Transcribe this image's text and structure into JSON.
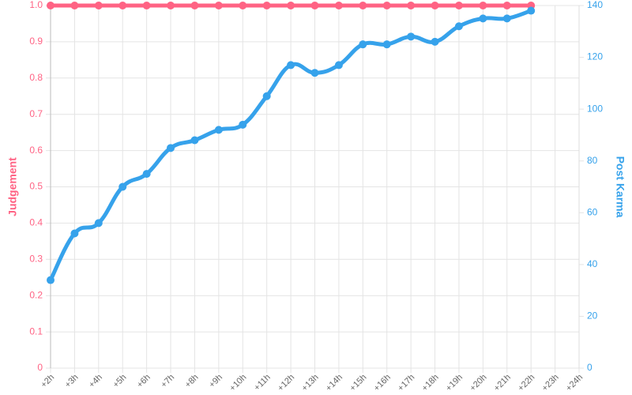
{
  "chart_data": {
    "type": "line",
    "categories": [
      "+2h",
      "+3h",
      "+4h",
      "+5h",
      "+6h",
      "+7h",
      "+8h",
      "+9h",
      "+10h",
      "+11h",
      "+12h",
      "+13h",
      "+14h",
      "+15h",
      "+16h",
      "+17h",
      "+18h",
      "+19h",
      "+20h",
      "+21h",
      "+22h",
      "+23h",
      "+24h"
    ],
    "series": [
      {
        "name": "Judgement",
        "color": "#ff6384",
        "axis": "y",
        "smooth": false,
        "values": [
          1,
          1,
          1,
          1,
          1,
          1,
          1,
          1,
          1,
          1,
          1,
          1,
          1,
          1,
          1,
          1,
          1,
          1,
          1,
          1,
          1,
          null,
          null
        ]
      },
      {
        "name": "Post Karma",
        "color": "#36a2eb",
        "axis": "y2",
        "smooth": true,
        "values": [
          34,
          52,
          56,
          70,
          75,
          85,
          88,
          92,
          94,
          105,
          117,
          114,
          117,
          125,
          125,
          128,
          126,
          132,
          135,
          135,
          138,
          null,
          null
        ]
      }
    ],
    "ylabel": "Judgement",
    "y2label": "Post Karma",
    "ylim": [
      0,
      1
    ],
    "yticks": [
      0,
      0.1,
      0.2,
      0.3,
      0.4,
      0.5,
      0.6,
      0.7,
      0.8,
      0.9,
      {
        "value": 1,
        "label": "1.0"
      }
    ],
    "y2lim": [
      0,
      140
    ],
    "y2ticks": [
      0,
      20,
      40,
      60,
      80,
      100,
      120,
      140
    ],
    "grid": true
  }
}
